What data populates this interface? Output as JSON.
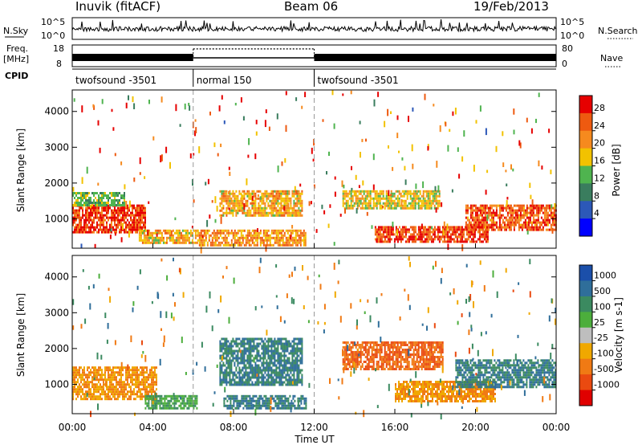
{
  "header": {
    "title": "Inuvik (fitACF)",
    "beam": "Beam 06",
    "date": "19/Feb/2013"
  },
  "nsky": {
    "label": "N.Sky",
    "right_label": "N.Search",
    "ticks_left": [
      "10^5",
      "10^0"
    ],
    "ticks_right": [
      "10^5",
      "10^0"
    ]
  },
  "freq": {
    "label_top": "Freq.",
    "label_unit": "[MHz]",
    "ticks_left": [
      "18",
      "8"
    ],
    "right_label": "Nave",
    "ticks_right": [
      "80",
      "0"
    ],
    "nave_level": 0.82
  },
  "cpid": {
    "label": "CPID",
    "segments": [
      {
        "name": "twofsound -3501",
        "start": 0,
        "end": 6
      },
      {
        "name": "normal 150",
        "start": 6,
        "end": 12
      },
      {
        "name": "twofsound -3501",
        "start": 12,
        "end": 24
      }
    ]
  },
  "x_axis": {
    "label": "Time UT",
    "ticks": [
      "00:00",
      "04:00",
      "08:00",
      "12:00",
      "16:00",
      "20:00",
      "00:00"
    ],
    "tick_hours": [
      0,
      4,
      8,
      12,
      16,
      20,
      24
    ],
    "range_hours": [
      0,
      24
    ]
  },
  "y_axis": {
    "label": "Slant Range [km]",
    "ticks": [
      "1000",
      "2000",
      "3000",
      "4000"
    ],
    "tick_values": [
      1000,
      2000,
      3000,
      4000
    ],
    "range_km": [
      180,
      4600
    ]
  },
  "power_scale": {
    "label": "Power [dB]",
    "ticks": [
      "4",
      "8",
      "12",
      "16",
      "20",
      "24",
      "28"
    ],
    "colors": [
      "#0000ff",
      "#2c58b8",
      "#3a7d5e",
      "#4fb44f",
      "#f2c200",
      "#f68a1e",
      "#ee5a10",
      "#e60000"
    ]
  },
  "velocity_scale": {
    "label": "Velocity [m s-1]",
    "ticks": [
      "1000",
      "500",
      "100",
      "25",
      "-25",
      "-100",
      "-500",
      "-1000"
    ],
    "colors": [
      "#1b4faa",
      "#2f6e9a",
      "#3b8a60",
      "#4cae3c",
      "#bebebe",
      "#f0a800",
      "#f07a14",
      "#ea4a10",
      "#e00000"
    ]
  },
  "chart_data": [
    {
      "type": "heatmap",
      "title": "",
      "xlabel": "Time UT",
      "ylabel": "Slant Range [km]",
      "xlim": [
        0,
        24
      ],
      "ylim": [
        180,
        4600
      ],
      "colorbar": "Power [dB]",
      "regions": [
        {
          "t": [
            0,
            3.6
          ],
          "r": [
            600,
            1400
          ],
          "value": 28
        },
        {
          "t": [
            0,
            2.6
          ],
          "r": [
            1400,
            1750
          ],
          "value": 14
        },
        {
          "t": [
            3.3,
            6.2
          ],
          "r": [
            350,
            700
          ],
          "value": 20
        },
        {
          "t": [
            6.2,
            11.6
          ],
          "r": [
            250,
            700
          ],
          "value": 22
        },
        {
          "t": [
            7.3,
            11.4
          ],
          "r": [
            1100,
            1800
          ],
          "value": 20
        },
        {
          "t": [
            13.4,
            18.2
          ],
          "r": [
            1300,
            1800
          ],
          "value": 18
        },
        {
          "t": [
            15,
            20.6
          ],
          "r": [
            350,
            800
          ],
          "value": 28
        },
        {
          "t": [
            19.5,
            24
          ],
          "r": [
            700,
            1400
          ],
          "value": 26
        }
      ]
    },
    {
      "type": "heatmap",
      "title": "",
      "xlabel": "Time UT",
      "ylabel": "Slant Range [km]",
      "xlim": [
        0,
        24
      ],
      "ylim": [
        180,
        4600
      ],
      "colorbar": "Velocity [m s-1]",
      "regions": [
        {
          "t": [
            0,
            4.2
          ],
          "r": [
            600,
            1500
          ],
          "value": -100
        },
        {
          "t": [
            3.6,
            6.2
          ],
          "r": [
            350,
            700
          ],
          "value": 100
        },
        {
          "t": [
            7.3,
            11.4
          ],
          "r": [
            1000,
            2300
          ],
          "value": 500
        },
        {
          "t": [
            7.5,
            11.6
          ],
          "r": [
            300,
            700
          ],
          "value": 500
        },
        {
          "t": [
            13.4,
            18.4
          ],
          "r": [
            1400,
            2200
          ],
          "value": -500
        },
        {
          "t": [
            16,
            21
          ],
          "r": [
            500,
            1100
          ],
          "value": -100
        },
        {
          "t": [
            19,
            24
          ],
          "r": [
            900,
            1700
          ],
          "value": 500
        }
      ]
    }
  ]
}
